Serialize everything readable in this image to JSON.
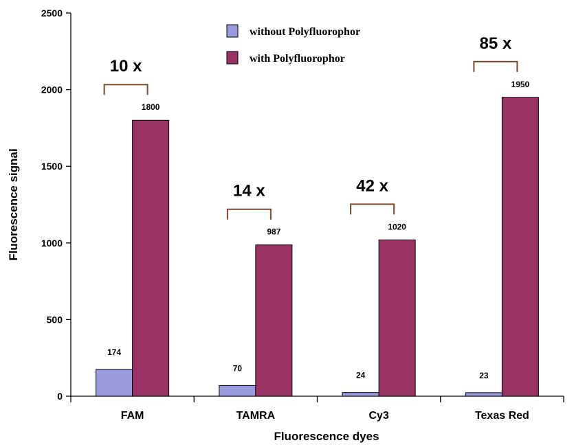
{
  "chart_data": {
    "type": "bar",
    "categories": [
      "FAM",
      "TAMRA",
      "Cy3",
      "Texas Red"
    ],
    "series": [
      {
        "name": "without Polyfluorophor",
        "values": [
          174,
          70,
          24,
          23
        ],
        "color": "#9999dd"
      },
      {
        "name": "with Polyfluorophor",
        "values": [
          1800,
          987,
          1020,
          1950
        ],
        "color": "#993366"
      }
    ],
    "data_labels": {
      "without": [
        "174",
        "70",
        "24",
        "23"
      ],
      "with": [
        "1800",
        "987",
        "1020",
        "1950"
      ]
    },
    "fold_labels": [
      "10 x",
      "14 x",
      "42 x",
      "85 x"
    ],
    "bracket_color": "#7a4a2a",
    "xlabel": "Fluorescence dyes",
    "ylabel": "Fluorescence signal",
    "ylim": [
      0,
      2500
    ],
    "yticks": [
      0,
      500,
      1000,
      1500,
      2000,
      2500
    ],
    "grid": false,
    "legend_position": "top-center"
  }
}
